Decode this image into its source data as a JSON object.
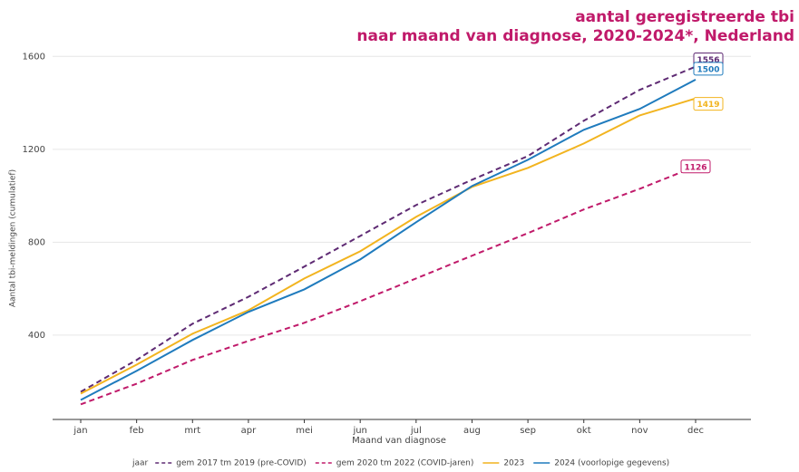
{
  "chart_data": {
    "type": "line",
    "title": "aantal geregistreerde  tbi",
    "subtitle": "naar maand van diagnose, 2020-2024*, Nederland",
    "x_label": "Maand van diagnose",
    "y_label": "Aantal tbi-meldingen (cumulatief)",
    "legend_title": "jaar",
    "categories": [
      "jan",
      "feb",
      "mrt",
      "apr",
      "mei",
      "jun",
      "jul",
      "aug",
      "sep",
      "okt",
      "nov",
      "dec"
    ],
    "ylim": [
      37,
      1640
    ],
    "yticks": [
      400,
      800,
      1200,
      1600
    ],
    "grid": true,
    "series": [
      {
        "name": "gem 2017 tm 2019 (pre-COVID)",
        "color": "#5e2a73",
        "linestyle": "dashed",
        "values": [
          156,
          293,
          449,
          565,
          695,
          827,
          960,
          1069,
          1171,
          1323,
          1456,
          1556
        ]
      },
      {
        "name": "gem 2020 tm 2022 (COVID-jaren)",
        "color": "#c01a6a",
        "linestyle": "dashed",
        "values": [
          102,
          191,
          293,
          375,
          453,
          546,
          644,
          742,
          839,
          941,
          1030,
          1126
        ]
      },
      {
        "name": "2023",
        "color": "#f2b41f",
        "linestyle": "solid",
        "values": [
          148,
          273,
          406,
          507,
          644,
          761,
          909,
          1038,
          1120,
          1225,
          1346,
          1419
        ]
      },
      {
        "name": "2024 (voorlopige gegevens)",
        "color": "#1f7bbd",
        "linestyle": "solid",
        "values": [
          121,
          246,
          379,
          500,
          597,
          726,
          886,
          1042,
          1155,
          1284,
          1374,
          1500
        ]
      }
    ]
  }
}
